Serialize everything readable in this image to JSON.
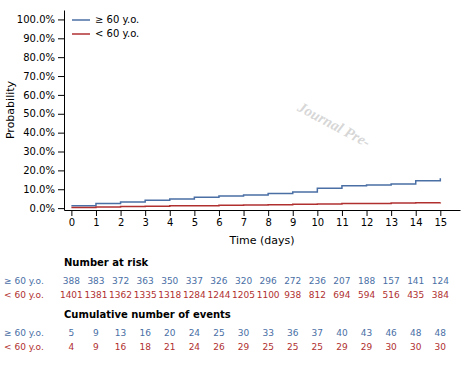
{
  "chart_data": {
    "type": "step",
    "x": [
      0,
      1,
      2,
      3,
      4,
      5,
      6,
      7,
      8,
      9,
      10,
      11,
      12,
      13,
      14,
      15
    ],
    "series": [
      {
        "name": "≥ 60 y.o.",
        "color": "#4a6fa5",
        "values": [
          0.013,
          0.025,
          0.032,
          0.042,
          0.048,
          0.058,
          0.064,
          0.07,
          0.078,
          0.085,
          0.105,
          0.118,
          0.122,
          0.128,
          0.145,
          0.158
        ]
      },
      {
        "name": "< 60 y.o.",
        "color": "#b03030",
        "values": [
          0.003,
          0.006,
          0.008,
          0.01,
          0.012,
          0.013,
          0.015,
          0.016,
          0.018,
          0.02,
          0.022,
          0.024,
          0.025,
          0.027,
          0.028,
          0.03
        ]
      }
    ],
    "xlabel": "Time (days)",
    "ylabel": "Probability",
    "xlim": [
      -0.3,
      15.8
    ],
    "xticks": [
      0,
      1,
      2,
      3,
      4,
      5,
      6,
      7,
      8,
      9,
      10,
      11,
      12,
      13,
      14,
      15
    ],
    "ylim": [
      -0.01,
      1.05
    ],
    "yticks": [
      {
        "value": 0.0,
        "label": "0.0%"
      },
      {
        "value": 0.1,
        "label": "10.0%"
      },
      {
        "value": 0.2,
        "label": "20.0%"
      },
      {
        "value": 0.3,
        "label": "30.0%"
      },
      {
        "value": 0.4,
        "label": "40.0%"
      },
      {
        "value": 0.5,
        "label": "50.0%"
      },
      {
        "value": 0.6,
        "label": "60.0%"
      },
      {
        "value": 0.7,
        "label": "70.0%"
      },
      {
        "value": 0.8,
        "label": "80.0%"
      },
      {
        "value": 0.9,
        "label": "90.0%"
      },
      {
        "value": 1.0,
        "label": "100.0%"
      }
    ],
    "legend": "upper left",
    "grid": false,
    "annotations": [
      {
        "text": "Journal Pre-"
      }
    ],
    "risk_table": [
      {
        "title": "Number at risk",
        "rows": [
          {
            "name": "≥ 60 y.o.",
            "color": "#4a6fa5",
            "values": [
              388,
              383,
              372,
              363,
              350,
              337,
              326,
              320,
              296,
              272,
              236,
              207,
              188,
              157,
              141,
              124
            ]
          },
          {
            "name": "< 60 y.o.",
            "color": "#b03030",
            "values": [
              1401,
              1381,
              1362,
              1335,
              1318,
              1284,
              1244,
              1205,
              1100,
              938,
              812,
              694,
              594,
              516,
              435,
              384
            ]
          }
        ]
      },
      {
        "title": "Cumulative number of events",
        "rows": [
          {
            "name": "≥ 60 y.o.",
            "color": "#4a6fa5",
            "values": [
              5,
              9,
              13,
              16,
              20,
              24,
              25,
              30,
              33,
              36,
              37,
              40,
              43,
              46,
              48,
              48
            ]
          },
          {
            "name": "< 60 y.o.",
            "color": "#b03030",
            "values": [
              4,
              9,
              16,
              18,
              21,
              24,
              26,
              29,
              25,
              25,
              25,
              29,
              29,
              30,
              30,
              30
            ]
          }
        ]
      }
    ]
  }
}
